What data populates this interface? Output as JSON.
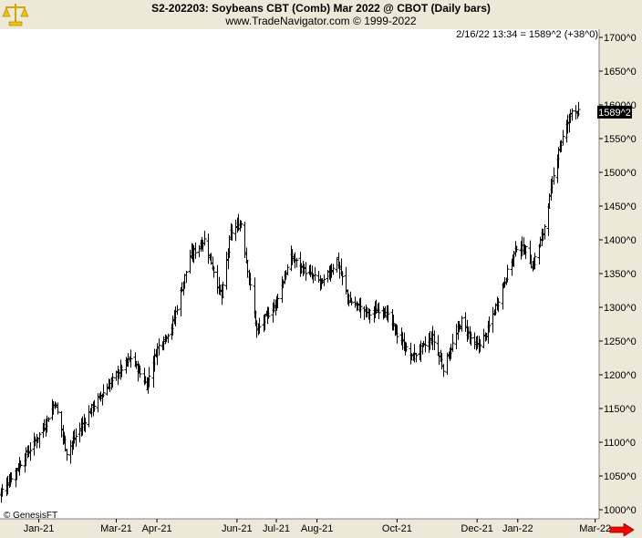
{
  "header": {
    "title": "S2-202203:  Soybeans CBT (Comb) Mar 2022 @ CBOT  (Daily bars)",
    "subtitle": "www.TradeNavigator.com © 1999-2022",
    "info": "2/16/22 13:34 = 1589^2 (+38^0)",
    "watermark": "© GenesisFT"
  },
  "last_price_label": "1589^2",
  "colors": {
    "plot_bg": "#ffffff",
    "frame_bg": "#ece9d8",
    "bars": "#000000",
    "price_box": "#000000",
    "arrow": "#ff0000",
    "logo": "#f2c200"
  },
  "icons": {
    "logo": "scales-logo-icon",
    "scroll": "right-arrow-icon"
  },
  "chart_data": {
    "type": "ohlc",
    "title": "S2-202203:  Soybeans CBT (Comb) Mar 2022 @ CBOT  (Daily bars)",
    "ylim": [
      1000,
      1700
    ],
    "y_ticks": [
      "1700^0",
      "1650^0",
      "1600^0",
      "1550^0",
      "1500^0",
      "1450^0",
      "1400^0",
      "1350^0",
      "1300^0",
      "1250^0",
      "1200^0",
      "1150^0",
      "1100^0",
      "1050^0",
      "1000^0"
    ],
    "y_tick_values": [
      1700,
      1650,
      1600,
      1550,
      1500,
      1450,
      1400,
      1350,
      1300,
      1250,
      1200,
      1150,
      1100,
      1050,
      1000
    ],
    "x_ticks": [
      "Jan-21",
      "Mar-21",
      "Apr-21",
      "Jun-21",
      "Jul-21",
      "Aug-21",
      "Oct-21",
      "Dec-21",
      "Jan-22",
      "Mar-22"
    ],
    "x_tick_dates": [
      "2021-01-01",
      "2021-03-01",
      "2021-04-01",
      "2021-06-01",
      "2021-07-01",
      "2021-08-01",
      "2021-10-01",
      "2021-12-01",
      "2022-01-01",
      "2022-03-01"
    ],
    "x_range": [
      "2020-12-01",
      "2022-03-20"
    ],
    "grid": false,
    "last_value": 1589.25,
    "bar_anchors": [
      [
        "2020-12-01",
        1020
      ],
      [
        "2020-12-20",
        1075
      ],
      [
        "2021-01-04",
        1120
      ],
      [
        "2021-01-13",
        1160
      ],
      [
        "2021-01-22",
        1085
      ],
      [
        "2021-02-10",
        1150
      ],
      [
        "2021-03-01",
        1200
      ],
      [
        "2021-03-12",
        1225
      ],
      [
        "2021-03-24",
        1185
      ],
      [
        "2021-04-01",
        1240
      ],
      [
        "2021-04-12",
        1270
      ],
      [
        "2021-04-26",
        1375
      ],
      [
        "2021-05-07",
        1400
      ],
      [
        "2021-05-20",
        1315
      ],
      [
        "2021-05-27",
        1410
      ],
      [
        "2021-06-04",
        1425
      ],
      [
        "2021-06-11",
        1330
      ],
      [
        "2021-06-16",
        1265
      ],
      [
        "2021-06-30",
        1305
      ],
      [
        "2021-07-12",
        1375
      ],
      [
        "2021-07-22",
        1355
      ],
      [
        "2021-08-05",
        1335
      ],
      [
        "2021-08-16",
        1370
      ],
      [
        "2021-08-25",
        1310
      ],
      [
        "2021-09-10",
        1290
      ],
      [
        "2021-09-20",
        1300
      ],
      [
        "2021-10-01",
        1260
      ],
      [
        "2021-10-12",
        1225
      ],
      [
        "2021-10-28",
        1255
      ],
      [
        "2021-11-05",
        1210
      ],
      [
        "2021-11-19",
        1280
      ],
      [
        "2021-11-30",
        1240
      ],
      [
        "2021-12-08",
        1260
      ],
      [
        "2021-12-20",
        1330
      ],
      [
        "2021-12-31",
        1390
      ],
      [
        "2022-01-07",
        1385
      ],
      [
        "2022-01-12",
        1360
      ],
      [
        "2022-01-20",
        1410
      ],
      [
        "2022-02-01",
        1535
      ],
      [
        "2022-02-09",
        1580
      ],
      [
        "2022-02-11",
        1595
      ],
      [
        "2022-02-16",
        1589
      ]
    ]
  }
}
